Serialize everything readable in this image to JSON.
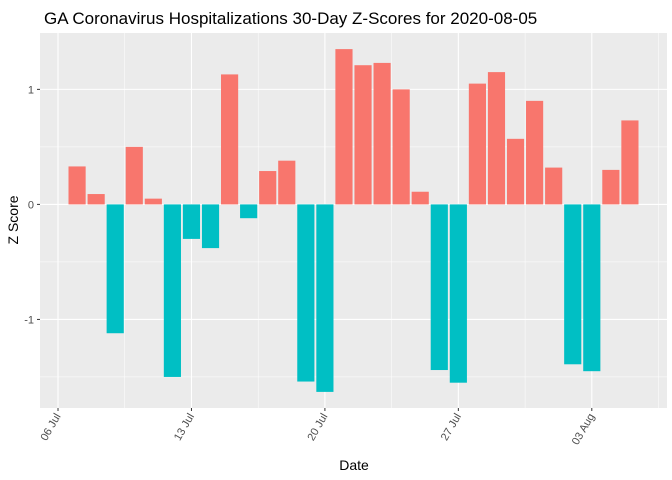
{
  "chart_data": {
    "type": "bar",
    "title": "GA Coronavirus Hospitalizations 30-Day Z-Scores for 2020-08-05",
    "x_label": "Date",
    "y_label": "Z Score",
    "x": [
      "07 Jul",
      "08 Jul",
      "09 Jul",
      "10 Jul",
      "11 Jul",
      "12 Jul",
      "13 Jul",
      "14 Jul",
      "15 Jul",
      "16 Jul",
      "17 Jul",
      "18 Jul",
      "19 Jul",
      "20 Jul",
      "21 Jul",
      "22 Jul",
      "23 Jul",
      "24 Jul",
      "25 Jul",
      "26 Jul",
      "27 Jul",
      "28 Jul",
      "29 Jul",
      "30 Jul",
      "31 Jul",
      "01 Aug",
      "02 Aug",
      "03 Aug",
      "04 Aug",
      "05 Aug"
    ],
    "values": [
      0.33,
      0.09,
      -1.12,
      0.5,
      0.05,
      -1.5,
      -0.3,
      -0.38,
      1.13,
      -0.12,
      0.29,
      0.38,
      -1.54,
      -1.63,
      1.35,
      1.21,
      1.23,
      1.0,
      0.11,
      -1.44,
      -1.55,
      1.05,
      1.15,
      0.57,
      0.9,
      0.32,
      -1.39,
      -1.45,
      0.3,
      0.73
    ],
    "positive_color": "#F8766D",
    "negative_color": "#00BFC4",
    "xticks": [
      "06 Jul",
      "13 Jul",
      "20 Jul",
      "27 Jul",
      "03 Aug"
    ],
    "ylim": [
      -1.77,
      1.49
    ],
    "yticks": [
      -1,
      0,
      1
    ],
    "grid": true
  }
}
